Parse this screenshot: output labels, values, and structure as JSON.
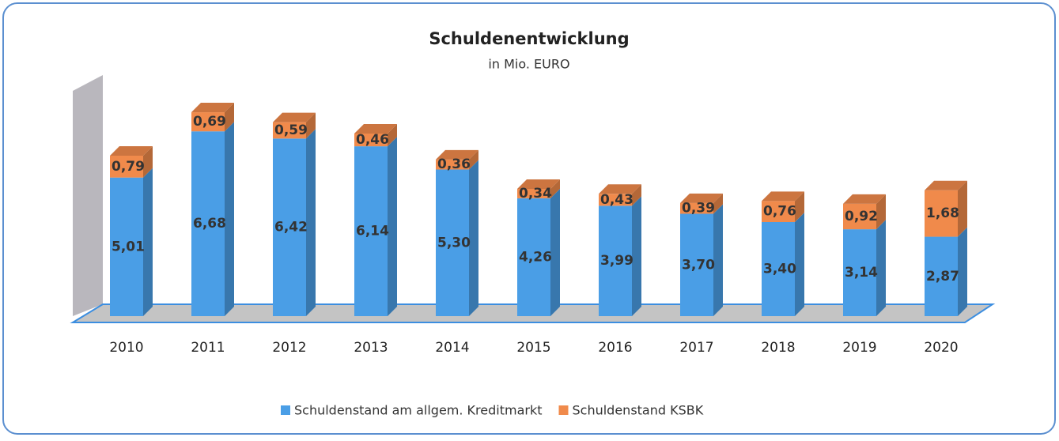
{
  "chart_data": {
    "type": "bar3d_stacked",
    "title": "Schuldenentwicklung",
    "subtitle": "in Mio. EURO",
    "categories": [
      "2010",
      "2011",
      "2012",
      "2013",
      "2014",
      "2015",
      "2016",
      "2017",
      "2018",
      "2019",
      "2020"
    ],
    "series": [
      {
        "name": "Schuldenstand am allgem. Kreditmarkt",
        "color": "#4a9ee6",
        "values": [
          5.01,
          6.68,
          6.42,
          6.14,
          5.3,
          4.26,
          3.99,
          3.7,
          3.4,
          3.14,
          2.87
        ],
        "value_labels": [
          "5,01",
          "6,68",
          "6,42",
          "6,14",
          "5,30",
          "4,26",
          "3,99",
          "3,70",
          "3,40",
          "3,14",
          "2,87"
        ]
      },
      {
        "name": "Schuldenstand KSBK",
        "color": "#f08a4b",
        "values": [
          0.79,
          0.69,
          0.59,
          0.46,
          0.36,
          0.34,
          0.43,
          0.39,
          0.76,
          0.92,
          1.68
        ],
        "value_labels": [
          "0,79",
          "0,69",
          "0,59",
          "0,46",
          "0,36",
          "0,34",
          "0,43",
          "0,39",
          "0,76",
          "0,92",
          "1,68"
        ]
      }
    ],
    "ylim": [
      0,
      8
    ]
  }
}
